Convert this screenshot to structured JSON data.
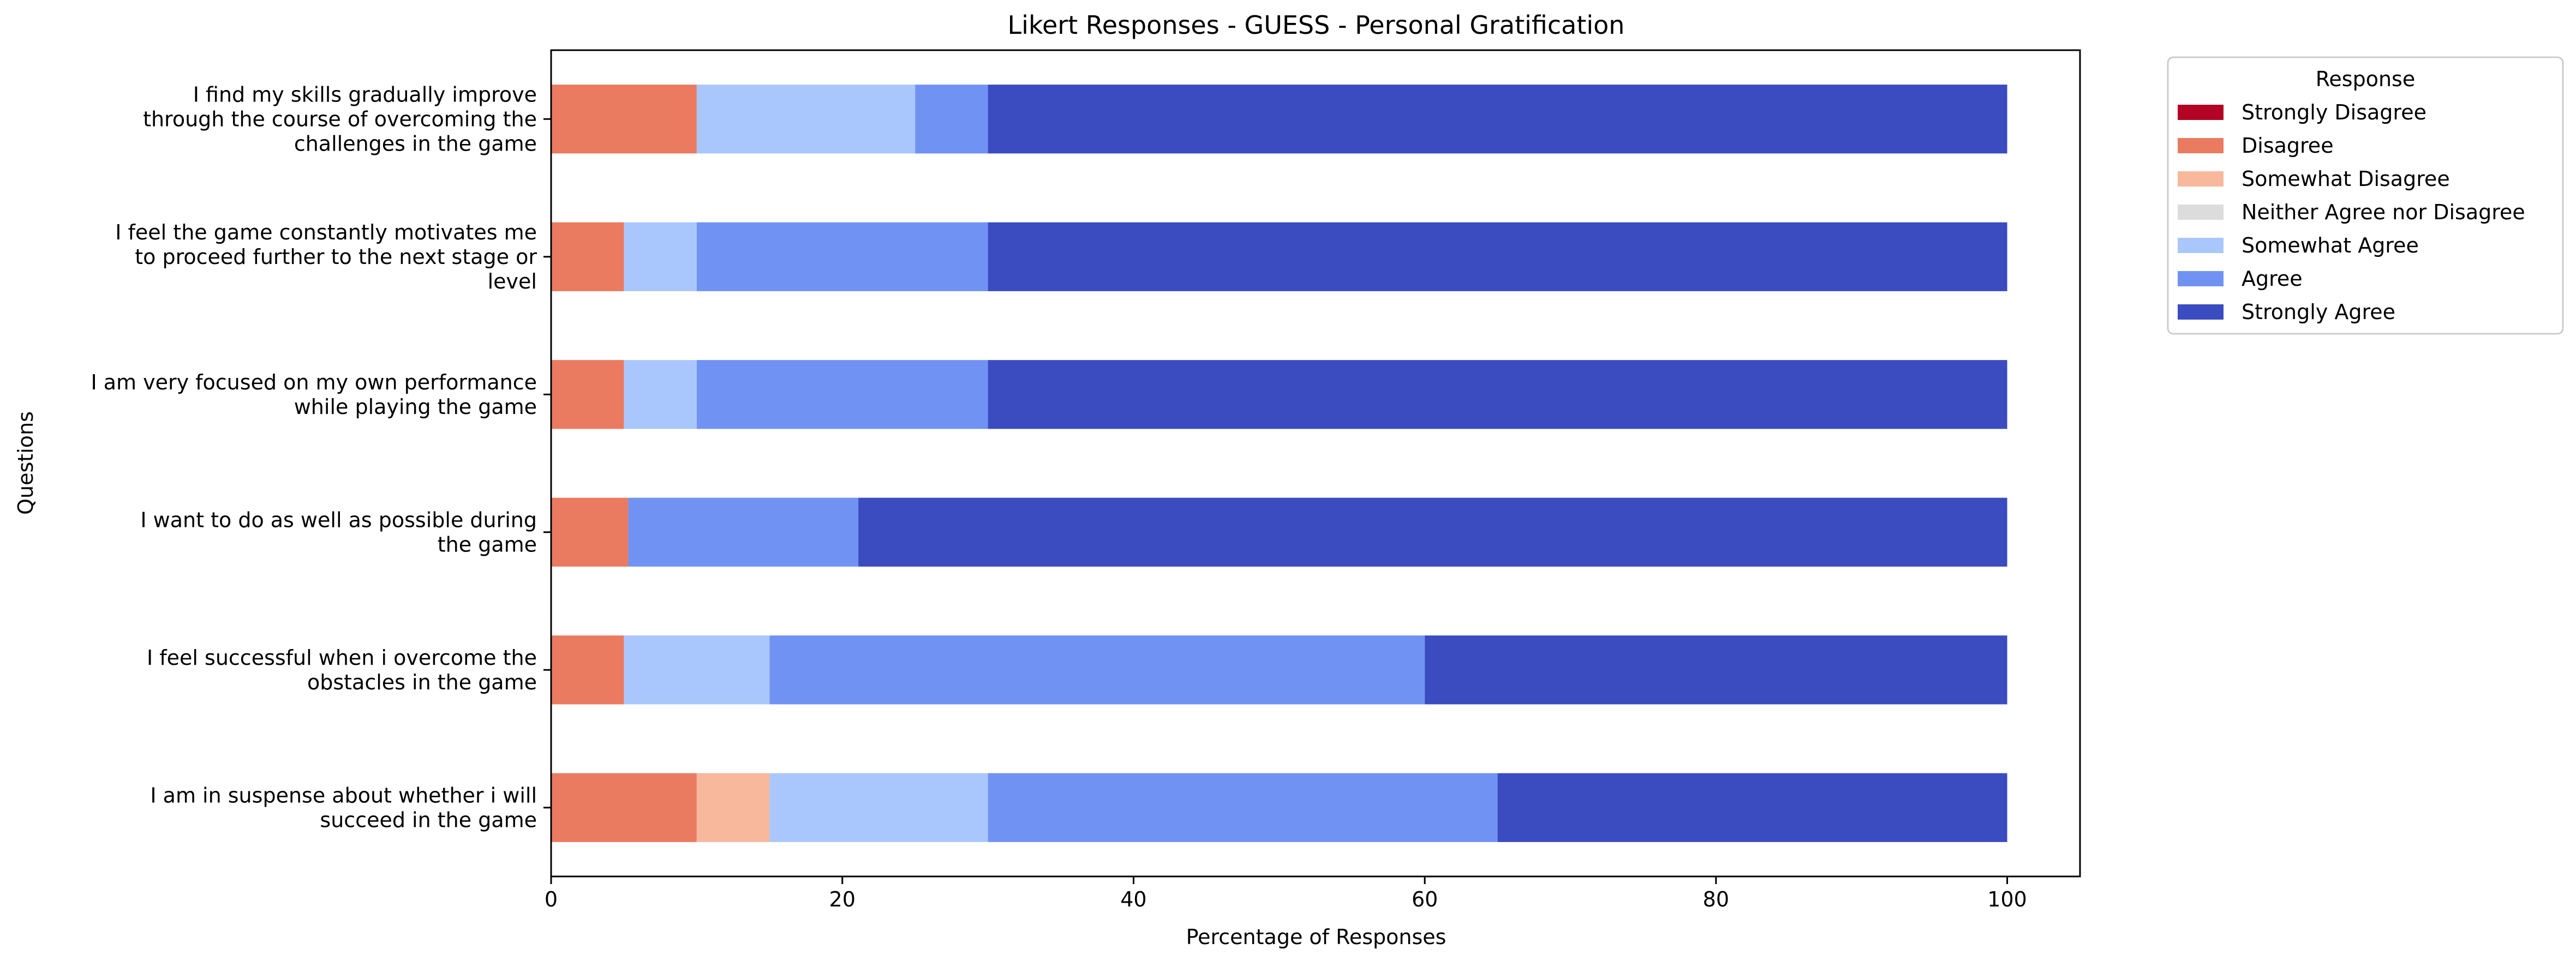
{
  "chart_data": {
    "type": "bar",
    "orientation": "horizontal",
    "stacked": true,
    "title": "Likert Responses - GUESS - Personal Gratification",
    "xlabel": "Percentage of Responses",
    "ylabel": "Questions",
    "xlim": [
      0,
      105
    ],
    "xticks": [
      0,
      20,
      40,
      60,
      80,
      100
    ],
    "grid": false,
    "legend": {
      "title": "Response",
      "placement": "outside-top-right"
    },
    "categories": [
      [
        "I find my skills gradually improve",
        "through the course of overcoming the",
        "challenges in the game"
      ],
      [
        "I feel the game constantly motivates me",
        "to proceed further to the next stage or",
        "level"
      ],
      [
        "I am very focused on my own performance",
        "while playing the game"
      ],
      [
        "I want to do as well as possible during",
        "the game"
      ],
      [
        "I feel successful when i overcome the",
        "obstacles in the game"
      ],
      [
        "I am in suspense about whether i will",
        "succeed in the game"
      ]
    ],
    "series": [
      {
        "name": "Strongly Disagree",
        "color": "#b40426",
        "values": [
          0,
          0,
          0,
          0,
          0,
          0
        ]
      },
      {
        "name": "Disagree",
        "color": "#ea7b60",
        "values": [
          10,
          5,
          5,
          5.3,
          5,
          10
        ]
      },
      {
        "name": "Somewhat Disagree",
        "color": "#f7b89c",
        "values": [
          0,
          0,
          0,
          0,
          0,
          5
        ]
      },
      {
        "name": "Neither Agree nor Disagree",
        "color": "#dddcdc",
        "values": [
          0,
          0,
          0,
          0,
          0,
          0
        ]
      },
      {
        "name": "Somewhat Agree",
        "color": "#aac7fd",
        "values": [
          15,
          5,
          5,
          0,
          10,
          15
        ]
      },
      {
        "name": "Agree",
        "color": "#7093f3",
        "values": [
          5,
          20,
          20,
          15.8,
          45,
          35
        ]
      },
      {
        "name": "Strongly Agree",
        "color": "#3b4cc0",
        "values": [
          70,
          70,
          70,
          78.9,
          40,
          35
        ]
      }
    ]
  }
}
